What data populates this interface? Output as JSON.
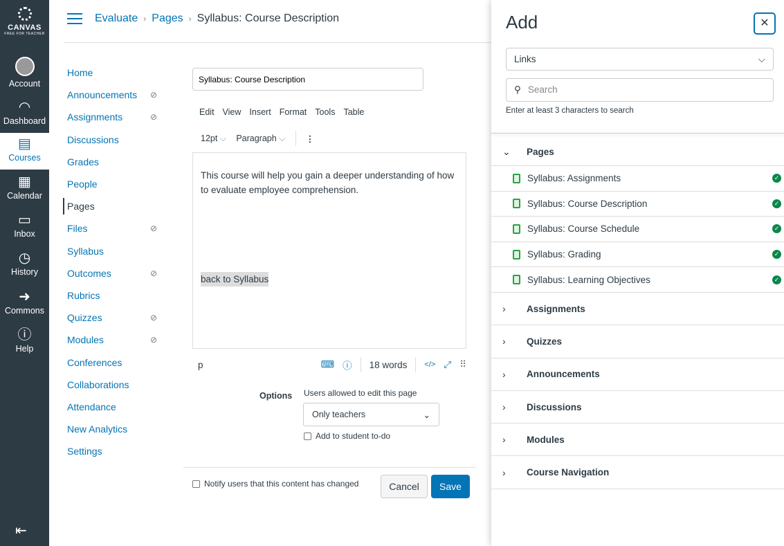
{
  "global_nav": {
    "logo": "CANVAS",
    "logo_sub": "FREE FOR TEACHER",
    "items": [
      {
        "label": "Account",
        "icon": "avatar-icon"
      },
      {
        "label": "Dashboard",
        "icon": "dashboard-icon"
      },
      {
        "label": "Courses",
        "icon": "courses-icon",
        "active": true
      },
      {
        "label": "Calendar",
        "icon": "calendar-icon"
      },
      {
        "label": "Inbox",
        "icon": "inbox-icon"
      },
      {
        "label": "History",
        "icon": "history-icon"
      },
      {
        "label": "Commons",
        "icon": "commons-icon"
      },
      {
        "label": "Help",
        "icon": "help-icon"
      }
    ]
  },
  "breadcrumb": {
    "course": "Evaluate",
    "section": "Pages",
    "current": "Syllabus: Course Description"
  },
  "course_nav": [
    {
      "label": "Home"
    },
    {
      "label": "Announcements",
      "hidden": true
    },
    {
      "label": "Assignments",
      "hidden": true
    },
    {
      "label": "Discussions"
    },
    {
      "label": "Grades"
    },
    {
      "label": "People"
    },
    {
      "label": "Pages",
      "active": true
    },
    {
      "label": "Files",
      "hidden": true
    },
    {
      "label": "Syllabus"
    },
    {
      "label": "Outcomes",
      "hidden": true
    },
    {
      "label": "Rubrics"
    },
    {
      "label": "Quizzes",
      "hidden": true
    },
    {
      "label": "Modules",
      "hidden": true
    },
    {
      "label": "Conferences"
    },
    {
      "label": "Collaborations"
    },
    {
      "label": "Attendance"
    },
    {
      "label": "New Analytics"
    },
    {
      "label": "Settings"
    }
  ],
  "editor": {
    "title_value": "Syllabus: Course Description",
    "menu": [
      "Edit",
      "View",
      "Insert",
      "Format",
      "Tools",
      "Table"
    ],
    "font_size": "12pt",
    "block": "Paragraph",
    "body": "This course will help you gain a deeper understanding of how to evaluate employee comprehension.",
    "link_text": "back to Syllabus",
    "path": "p",
    "word_count": "18 words",
    "html_toggle": "</>"
  },
  "options": {
    "label": "Options",
    "edit_label": "Users allowed to edit this page",
    "edit_value": "Only teachers",
    "todo_label": "Add to student to-do",
    "notify_label": "Notify users that this content has changed",
    "cancel": "Cancel",
    "save": "Save"
  },
  "tray": {
    "title": "Add",
    "type": "Links",
    "search_placeholder": "Search",
    "hint": "Enter at least 3 characters to search",
    "sections": [
      {
        "label": "Pages",
        "open": true,
        "items": [
          "Syllabus: Assignments",
          "Syllabus: Course Description",
          "Syllabus: Course Schedule",
          "Syllabus: Grading",
          "Syllabus: Learning Objectives"
        ]
      },
      {
        "label": "Assignments"
      },
      {
        "label": "Quizzes"
      },
      {
        "label": "Announcements"
      },
      {
        "label": "Discussions"
      },
      {
        "label": "Modules"
      },
      {
        "label": "Course Navigation"
      }
    ]
  },
  "colors": {
    "nav_bg": "#2d3b45",
    "link": "#0374b5",
    "published": "#0b874b"
  }
}
